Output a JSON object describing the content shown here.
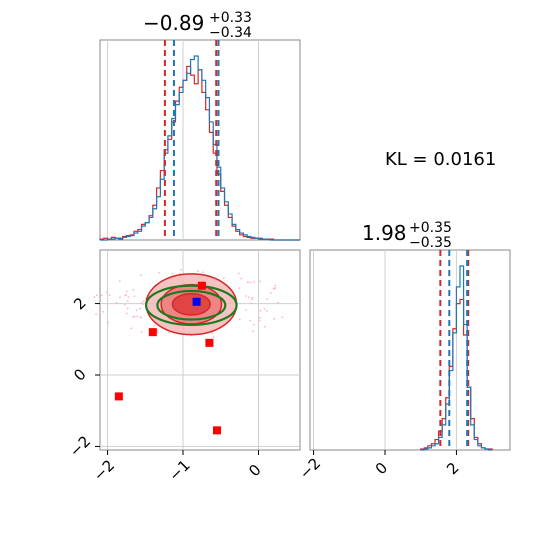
{
  "chart_data": [
    {
      "type": "histogram",
      "panel": "top-left",
      "title": "−0.89",
      "title_sup": "+0.33",
      "title_sub": "−0.34",
      "xlim": [
        -2.1,
        0.55
      ],
      "colors": {
        "red": "#d62728",
        "blue": "#1f77b4"
      },
      "quantiles_red": [
        -1.24,
        -0.89,
        -0.56
      ],
      "quantiles_blue": [
        -1.12,
        -0.89,
        -0.53
      ],
      "bins": [
        -2.1,
        -2.05,
        -2.0,
        -1.95,
        -1.9,
        -1.85,
        -1.8,
        -1.75,
        -1.7,
        -1.65,
        -1.6,
        -1.55,
        -1.5,
        -1.45,
        -1.4,
        -1.35,
        -1.3,
        -1.25,
        -1.2,
        -1.15,
        -1.1,
        -1.05,
        -1.0,
        -0.95,
        -0.9,
        -0.85,
        -0.8,
        -0.75,
        -0.7,
        -0.65,
        -0.6,
        -0.55,
        -0.5,
        -0.45,
        -0.4,
        -0.35,
        -0.3,
        -0.25,
        -0.2,
        -0.15,
        -0.1,
        -0.05,
        0.0,
        0.05,
        0.1,
        0.15,
        0.2,
        0.25,
        0.3,
        0.35,
        0.4,
        0.45,
        0.5,
        0.55
      ],
      "series": [
        {
          "color": "red",
          "counts": [
            0.5,
            1,
            0.5,
            1.5,
            1,
            0.5,
            2,
            2.5,
            3,
            5,
            6,
            9,
            10,
            14,
            20,
            30,
            40,
            52,
            58,
            68,
            80,
            88,
            92,
            100,
            95,
            90,
            98,
            85,
            75,
            62,
            50,
            38,
            28,
            20,
            13,
            8,
            5,
            3,
            2,
            1.5,
            1,
            1,
            0.5,
            0.5,
            0.5,
            0.5,
            0,
            0,
            0,
            0,
            0,
            0,
            0
          ]
        },
        {
          "color": "blue",
          "counts": [
            0,
            0,
            0.5,
            0.5,
            1,
            1,
            1.5,
            2,
            2.5,
            4,
            5,
            8,
            10,
            13,
            18,
            25,
            35,
            50,
            60,
            70,
            78,
            85,
            92,
            96,
            104,
            106,
            98,
            92,
            82,
            68,
            55,
            42,
            30,
            22,
            15,
            9,
            6,
            4,
            3,
            2,
            1.5,
            1,
            1,
            0.5,
            0.5,
            0,
            0,
            0,
            0,
            0,
            0,
            0,
            0
          ]
        }
      ]
    },
    {
      "type": "histogram",
      "panel": "bottom-right",
      "title": "1.98",
      "title_sup": "+0.35",
      "title_sub": "−0.35",
      "xlim": [
        -2.1,
        3.5
      ],
      "x_ticks": [
        -2,
        0,
        2
      ],
      "x_tick_labels": [
        "−2",
        "0",
        "2"
      ],
      "quantiles_red": [
        1.55,
        1.98,
        2.33
      ],
      "quantiles_blue": [
        1.8,
        1.98,
        2.3
      ],
      "bins": [
        1.0,
        1.1,
        1.2,
        1.3,
        1.4,
        1.5,
        1.6,
        1.7,
        1.8,
        1.9,
        2.0,
        2.1,
        2.2,
        2.3,
        2.4,
        2.5,
        2.6,
        2.7,
        2.8,
        2.9,
        3.0
      ],
      "series": [
        {
          "color": "red",
          "counts": [
            0.5,
            1,
            2,
            3,
            5,
            9,
            15,
            25,
            40,
            58,
            70,
            72,
            55,
            30,
            15,
            6,
            3,
            1,
            0.5,
            0.5
          ]
        },
        {
          "color": "blue",
          "counts": [
            0,
            0.5,
            1,
            2,
            3,
            6,
            12,
            22,
            38,
            56,
            78,
            88,
            60,
            30,
            12,
            5,
            2,
            1,
            0.5,
            0
          ]
        }
      ]
    },
    {
      "type": "contour",
      "panel": "bottom-left",
      "xlim": [
        -2.1,
        0.55
      ],
      "ylim": [
        -2.1,
        3.5
      ],
      "x_ticks": [
        -2,
        -1,
        0
      ],
      "x_tick_labels": [
        "−2",
        "−1",
        "0"
      ],
      "y_ticks": [
        -2,
        0,
        2
      ],
      "y_tick_labels": [
        "−2",
        "0",
        "2"
      ],
      "center": {
        "x": -0.89,
        "y": 1.98
      },
      "red_levels": [
        {
          "rx": 0.6,
          "ry": 0.85
        },
        {
          "rx": 0.4,
          "ry": 0.55
        },
        {
          "rx": 0.25,
          "ry": 0.3
        }
      ],
      "green_levels": [
        {
          "rx": 0.6,
          "ry": 0.55
        },
        {
          "rx": 0.45,
          "ry": 0.4
        }
      ],
      "red_points": [
        [
          -0.75,
          2.5
        ],
        [
          -1.4,
          1.2
        ],
        [
          -0.65,
          0.9
        ],
        [
          -1.85,
          -0.6
        ],
        [
          -0.55,
          -1.55
        ]
      ],
      "blue_points": [
        [
          -0.82,
          2.05
        ],
        [
          -0.55,
          -1.55
        ]
      ]
    },
    {
      "type": "annotation",
      "panel": "top-right",
      "text": "KL = 0.0161"
    }
  ]
}
